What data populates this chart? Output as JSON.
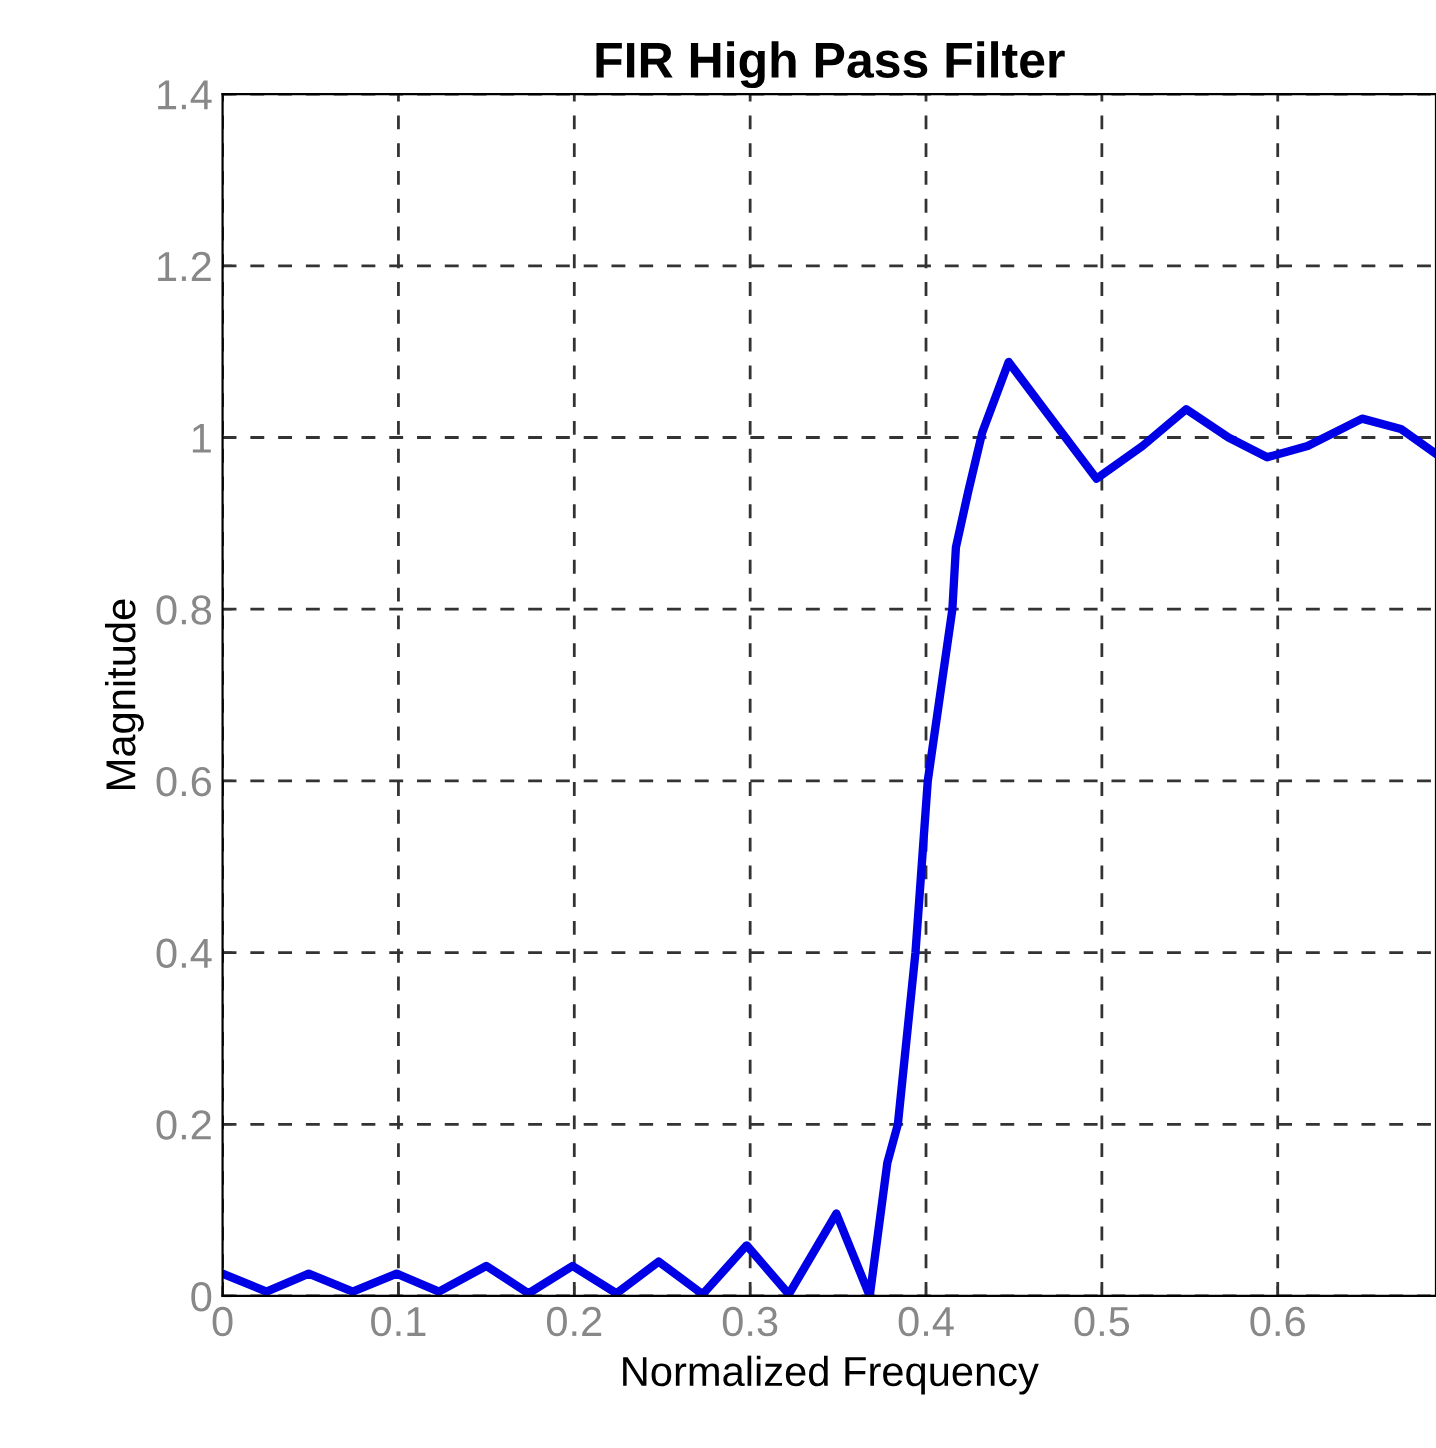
{
  "chart_data": {
    "type": "line",
    "title": "FIR High Pass Filter",
    "xlabel": "Normalized Frequency",
    "ylabel": "Magnitude",
    "series": [
      {
        "color": "#0000e6",
        "x": [
          0,
          0.025,
          0.049,
          0.074,
          0.099,
          0.123,
          0.15,
          0.174,
          0.199,
          0.224,
          0.248,
          0.273,
          0.298,
          0.322,
          0.349,
          0.368,
          0.378,
          0.384,
          0.394,
          0.401,
          0.415,
          0.417,
          0.424,
          0.432,
          0.447,
          0.466,
          0.497,
          0.523,
          0.548,
          0.572,
          0.594,
          0.617,
          0.648,
          0.67,
          0.69
        ],
        "values": [
          0.026,
          0.005,
          0.026,
          0.005,
          0.026,
          0.005,
          0.035,
          0.003,
          0.035,
          0.003,
          0.04,
          0.002,
          0.059,
          0.002,
          0.096,
          0,
          0.155,
          0.2,
          0.4,
          0.6,
          0.8,
          0.872,
          0.937,
          1.006,
          1.088,
          1.036,
          0.952,
          0.99,
          1.033,
          1.0,
          0.977,
          0.99,
          1.022,
          1.01,
          0.981
        ]
      }
    ],
    "xlim": [
      0,
      0.69
    ],
    "xticks": [
      0,
      0.1,
      0.2,
      0.3,
      0.4,
      0.5,
      0.6
    ],
    "ylim": [
      0,
      1.4
    ],
    "yticks": [
      0,
      0.2,
      0.4,
      0.6,
      0.8,
      1,
      1.2,
      1.4
    ],
    "grid": true,
    "marker": "none",
    "line_style": "solid"
  }
}
